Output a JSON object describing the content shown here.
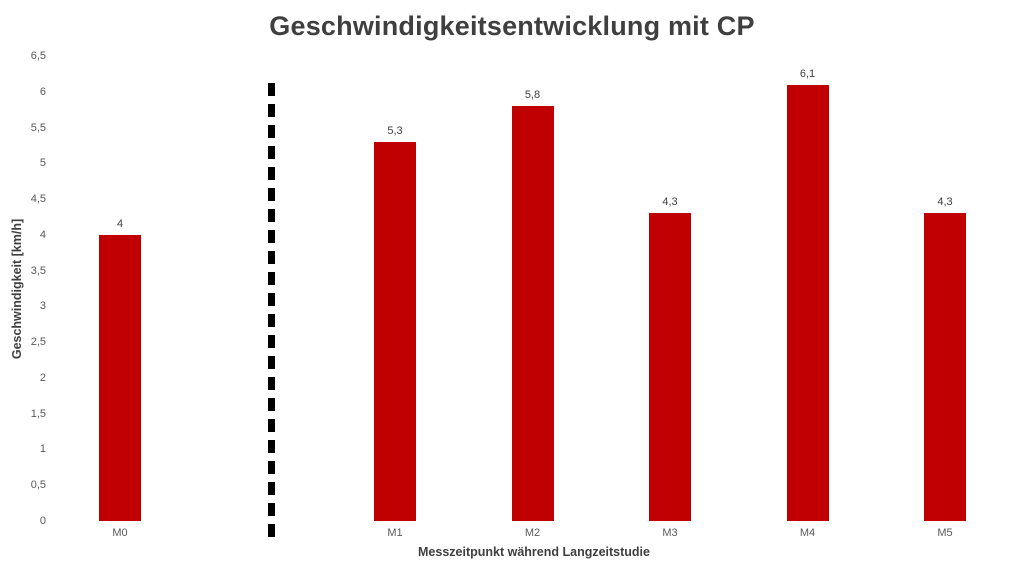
{
  "chart_data": {
    "type": "bar",
    "title": "Geschwindigkeitsentwicklung mit CP",
    "xlabel": "Messzeitpunkt während Langzeitstudie",
    "ylabel": "Geschwindigkeit [km/h]",
    "categories": [
      "M0",
      "M1",
      "M2",
      "M3",
      "M4",
      "M5"
    ],
    "values": [
      4,
      5.3,
      5.8,
      4.3,
      6.1,
      4.3
    ],
    "value_labels": [
      "4",
      "5,3",
      "5,8",
      "4,3",
      "6,1",
      "4,3"
    ],
    "slots": [
      0,
      2,
      3,
      4,
      5,
      6
    ],
    "slot_count": 7,
    "ylim": [
      0,
      6.5
    ],
    "ytick_step": 0.5,
    "ytick_labels": [
      "0",
      "0,5",
      "1",
      "1,5",
      "2",
      "2,5",
      "3",
      "3,5",
      "4",
      "4,5",
      "5",
      "5,5",
      "6",
      "6,5"
    ],
    "bar_color": "#c00000",
    "label_color": "#404040",
    "tick_color": "#595959",
    "title_color": "#3f3f3f",
    "grid": false,
    "legend": false,
    "annotations": [
      {
        "type": "vertical-dashed-line",
        "color": "#000000",
        "position": "between M0 and M1",
        "meaning": "separates baseline measurement M0 from study measurements M1-M5"
      }
    ]
  }
}
